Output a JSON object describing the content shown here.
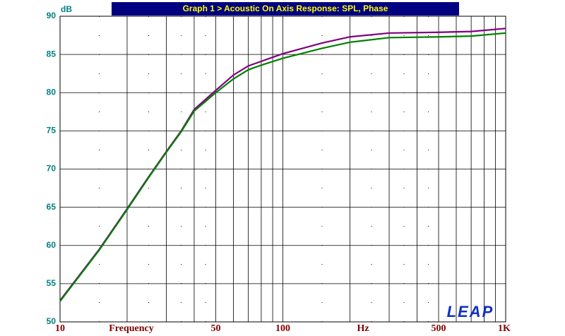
{
  "chart_data": {
    "type": "line",
    "title": "Graph 1 > Acoustic On Axis Response: SPL, Phase",
    "y_label": "dB",
    "x_label": "Frequency",
    "x_unit": "Hz",
    "logo": "LEAP",
    "x": [
      10,
      15,
      20,
      25,
      30,
      35,
      40,
      50,
      60,
      70,
      80,
      100,
      150,
      200,
      300,
      500,
      700,
      1000
    ],
    "series": [
      {
        "color": "#800080",
        "values": [
          52.8,
          59.5,
          64.8,
          69.0,
          72.3,
          75.0,
          77.8,
          80.3,
          82.3,
          83.5,
          84.1,
          85.1,
          86.5,
          87.3,
          87.8,
          87.9,
          88.0,
          88.4
        ]
      },
      {
        "color": "#008000",
        "values": [
          52.7,
          59.4,
          64.7,
          68.9,
          72.2,
          74.9,
          77.6,
          80.0,
          81.8,
          83.0,
          83.6,
          84.5,
          85.8,
          86.6,
          87.2,
          87.3,
          87.4,
          87.8
        ]
      }
    ],
    "xscale": "log",
    "xlim": [
      10,
      1000
    ],
    "xticks": [
      10,
      50,
      100,
      500,
      {
        "value": 1000,
        "label": "1K"
      }
    ],
    "xgrid": [
      20,
      30,
      40,
      60,
      70,
      80,
      90,
      200,
      300,
      400,
      600,
      700,
      800,
      900
    ],
    "xgrid_dotted": [
      15,
      25,
      35,
      45,
      150,
      250,
      350,
      450
    ],
    "ylim": [
      50,
      90
    ],
    "yticks": [
      50,
      55,
      60,
      65,
      70,
      75,
      80,
      85,
      90
    ],
    "grid": true
  }
}
